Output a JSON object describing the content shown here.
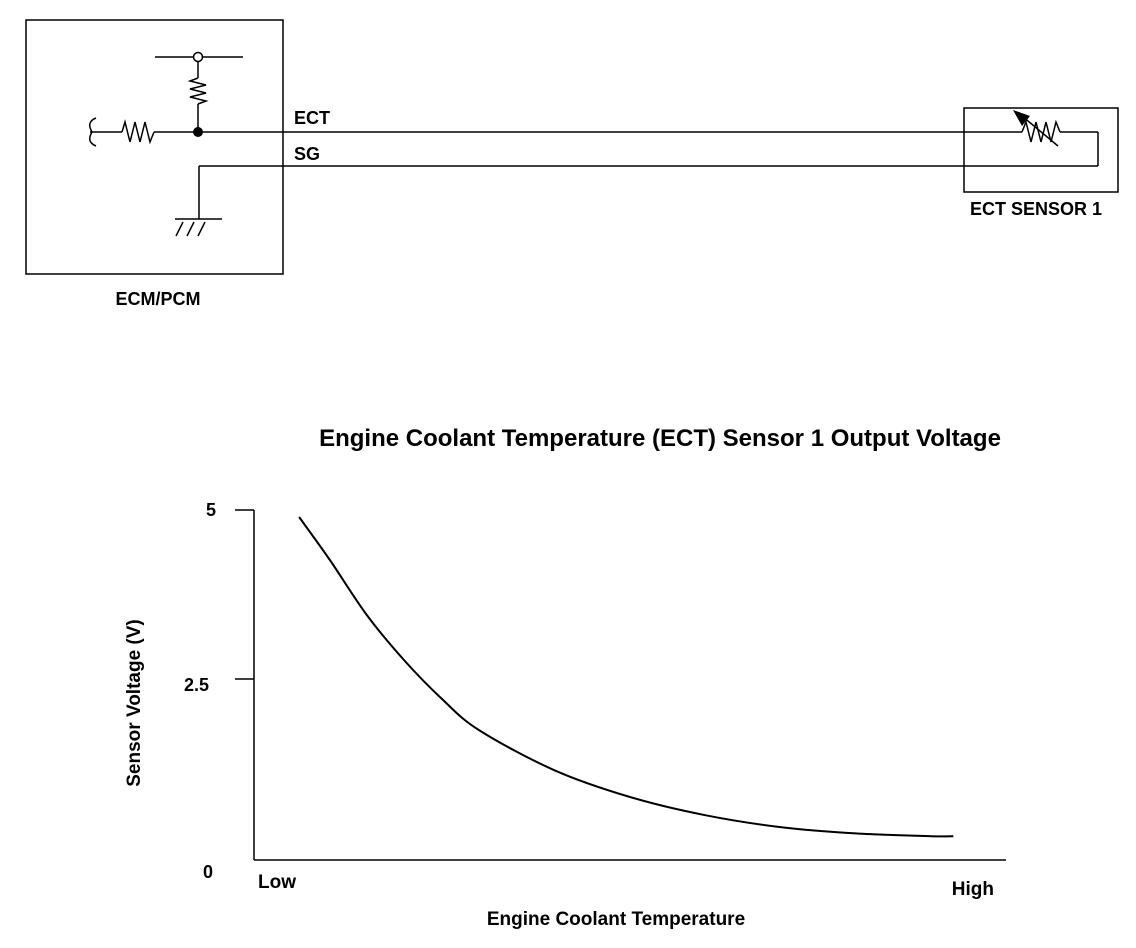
{
  "wiring": {
    "ecm_label": "ECM/PCM",
    "sensor_label": "ECT SENSOR 1",
    "wire_ect_label": "ECT",
    "wire_sg_label": "SG"
  },
  "chart_data": {
    "type": "line",
    "title": "Engine Coolant Temperature (ECT) Sensor 1 Output Voltage",
    "xlabel": "Engine Coolant Temperature",
    "ylabel": "Sensor Voltage (V)",
    "x_ticks": [
      "Low",
      "High"
    ],
    "y_ticks": [
      "0",
      "2.5",
      "5"
    ],
    "ylim": [
      0,
      5
    ],
    "series": [
      {
        "x": [
          0.06,
          0.1,
          0.15,
          0.2,
          0.25,
          0.3,
          0.4,
          0.5,
          0.6,
          0.7,
          0.8,
          0.9,
          0.93
        ],
        "y": [
          4.9,
          4.3,
          3.5,
          2.85,
          2.3,
          1.85,
          1.28,
          0.9,
          0.64,
          0.47,
          0.38,
          0.34,
          0.34
        ]
      }
    ],
    "grid": false
  }
}
